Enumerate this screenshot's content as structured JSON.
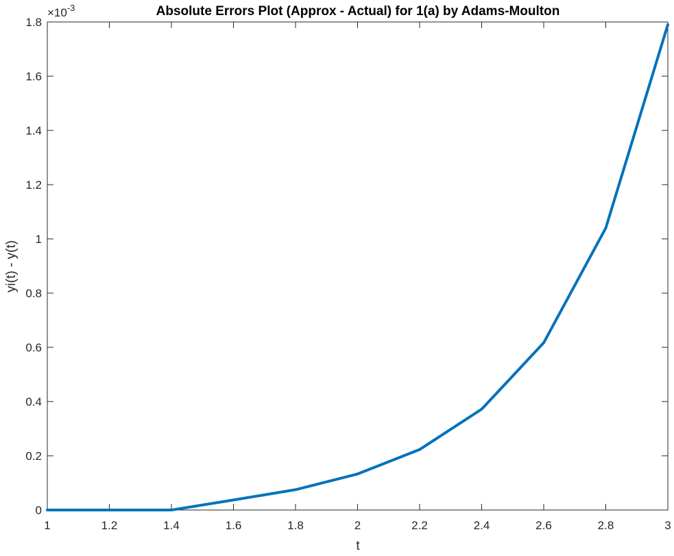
{
  "chart_data": {
    "type": "line",
    "title": "Absolute Errors Plot (Approx - Actual) for 1(a) by Adams-Moulton",
    "xlabel": "t",
    "ylabel": "yi(t) - y(t)",
    "y_multiplier_base": "×10",
    "y_multiplier_exp": "-3",
    "xlim": [
      1,
      3
    ],
    "ylim": [
      0,
      1.8
    ],
    "x_ticks": [
      1,
      1.2,
      1.4,
      1.6,
      1.8,
      2,
      2.2,
      2.4,
      2.6,
      2.8,
      3
    ],
    "x_tick_labels": [
      "1",
      "1.2",
      "1.4",
      "1.6",
      "1.8",
      "2",
      "2.2",
      "2.4",
      "2.6",
      "2.8",
      "3"
    ],
    "y_ticks": [
      0,
      0.2,
      0.4,
      0.6,
      0.8,
      1,
      1.2,
      1.4,
      1.6,
      1.8
    ],
    "y_tick_labels": [
      "0",
      "0.2",
      "0.4",
      "0.6",
      "0.8",
      "1",
      "1.2",
      "1.4",
      "1.6",
      "1.8"
    ],
    "grid": false,
    "series": [
      {
        "color": "#0072bd",
        "x": [
          1,
          1.2,
          1.4,
          1.6,
          1.8,
          2,
          2.2,
          2.4,
          2.6,
          2.8,
          3
        ],
        "y": [
          0,
          0,
          0,
          0.037,
          0.075,
          0.133,
          0.223,
          0.372,
          0.617,
          1.04,
          1.79
        ]
      }
    ]
  }
}
